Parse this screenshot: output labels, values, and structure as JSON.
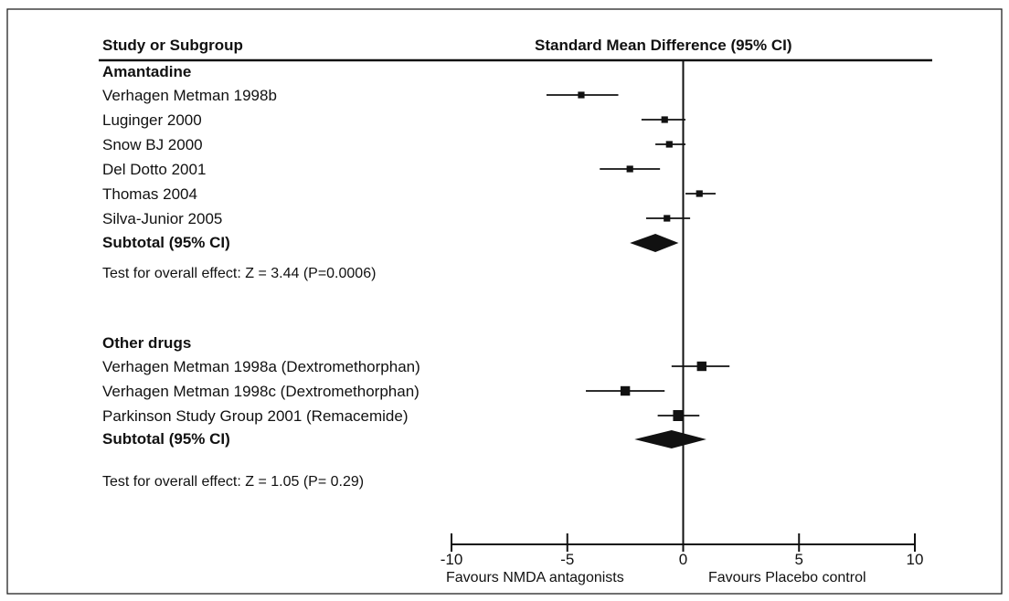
{
  "chart_data": {
    "type": "forest",
    "header": {
      "left": "Study or Subgroup",
      "right": "Standard Mean Difference (95% CI)"
    },
    "xlim": [
      -10,
      10
    ],
    "xticks": [
      "-10",
      "-5",
      "0",
      "5",
      "10"
    ],
    "xtick_values": [
      -10,
      -5,
      0,
      5,
      10
    ],
    "favours_left": "Favours NMDA antagonists",
    "favours_right": "Favours Placebo control",
    "groups": [
      {
        "name": "Amantadine",
        "studies": [
          {
            "label": "Verhagen Metman 1998b",
            "est": -4.4,
            "lo": -5.9,
            "hi": -2.8,
            "weight": 1
          },
          {
            "label": "Luginger 2000",
            "est": -0.8,
            "lo": -1.8,
            "hi": 0.1,
            "weight": 1
          },
          {
            "label": "Snow BJ 2000",
            "est": -0.6,
            "lo": -1.2,
            "hi": 0.1,
            "weight": 1
          },
          {
            "label": "Del Dotto 2001",
            "est": -2.3,
            "lo": -3.6,
            "hi": -1.0,
            "weight": 1
          },
          {
            "label": "Thomas 2004",
            "est": 0.7,
            "lo": 0.1,
            "hi": 1.4,
            "weight": 1
          },
          {
            "label": "Silva-Junior 2005",
            "est": -0.7,
            "lo": -1.6,
            "hi": 0.3,
            "weight": 1
          }
        ],
        "subtotal": {
          "label": "Subtotal (95% CI)",
          "est": -1.2,
          "lo": -2.3,
          "hi": -0.2
        },
        "overall_effect": "Test for overall effect: Z = 3.44 (P=0.0006)"
      },
      {
        "name": "Other drugs",
        "studies": [
          {
            "label": "Verhagen Metman 1998a (Dextromethorphan)",
            "est": 0.8,
            "lo": -0.5,
            "hi": 2.0,
            "weight": 2
          },
          {
            "label": "Verhagen Metman 1998c (Dextromethorphan)",
            "est": -2.5,
            "lo": -4.2,
            "hi": -0.8,
            "weight": 2
          },
          {
            "label": "Parkinson Study Group 2001 (Remacemide)",
            "est": -0.2,
            "lo": -1.1,
            "hi": 0.7,
            "weight": 2.5
          }
        ],
        "subtotal": {
          "label": "Subtotal (95% CI)",
          "est": -0.5,
          "lo": -2.1,
          "hi": 1.0
        },
        "overall_effect": "Test for overall effect: Z = 1.05 (P= 0.29)"
      }
    ]
  }
}
